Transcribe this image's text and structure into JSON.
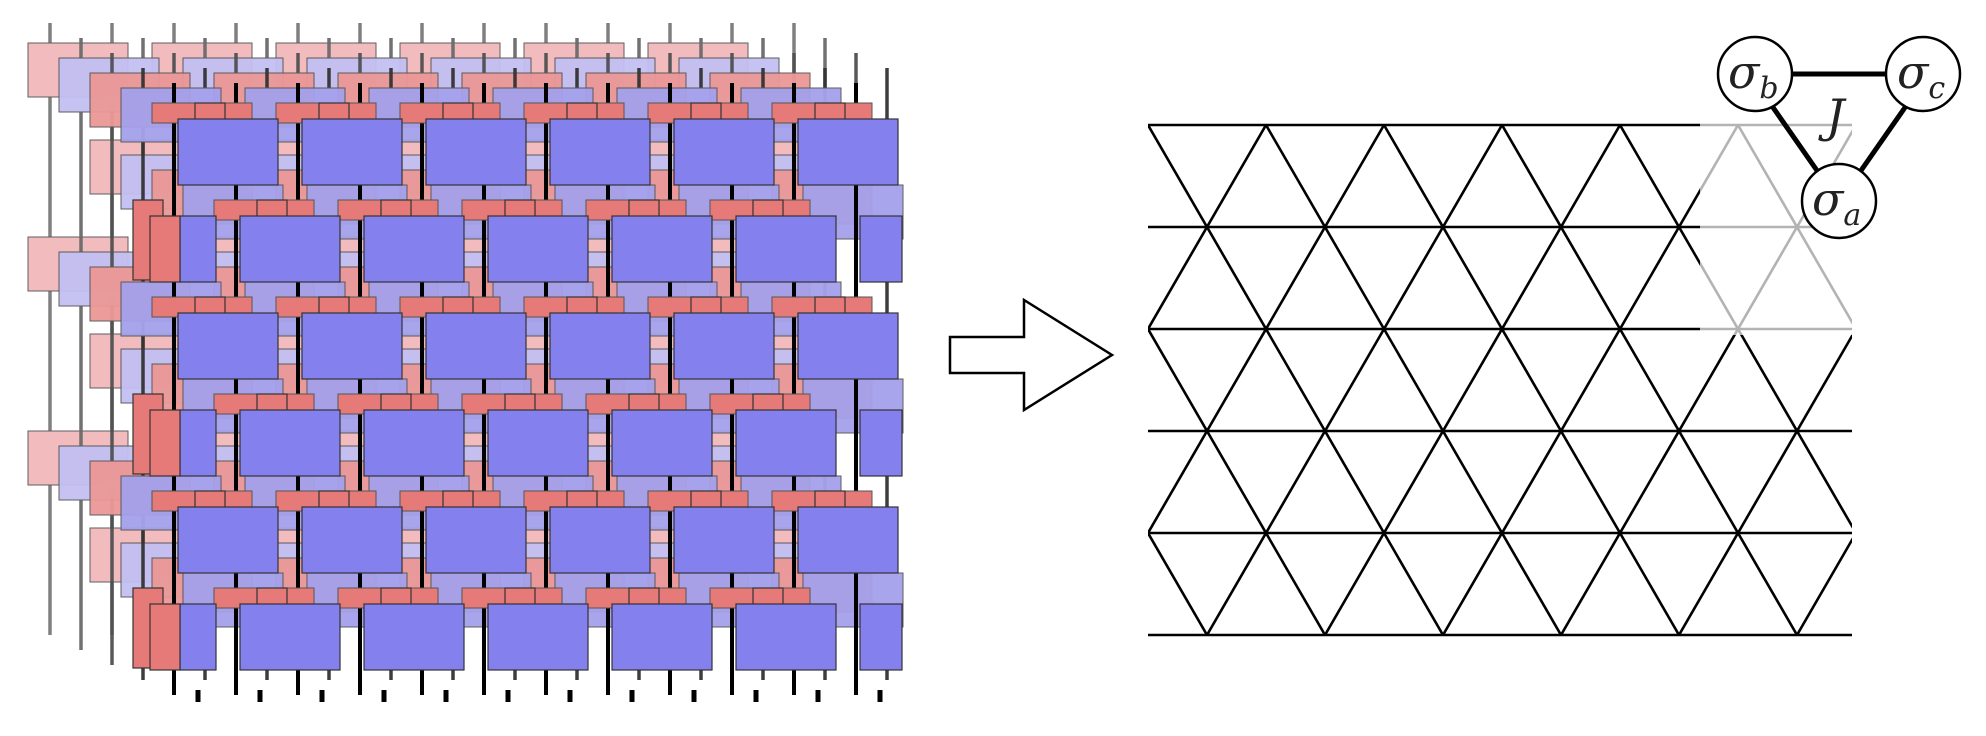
{
  "diagram": {
    "left_network": {
      "layers": 5,
      "tensor_rows": 6,
      "tensor_columns": 6
    },
    "arrow": {
      "direction": "right",
      "shape": "block-arrow"
    },
    "lattice": {
      "type": "triangular",
      "rows": 5
    },
    "inset": {
      "nodes": [
        {
          "id": "b",
          "base": "σ",
          "sub": "b"
        },
        {
          "id": "c",
          "base": "σ",
          "sub": "c"
        },
        {
          "id": "a",
          "base": "σ",
          "sub": "a"
        }
      ],
      "coupling_label": "J"
    },
    "colors": {
      "gate_red": "#e57a78",
      "gate_blue": "#8480ee",
      "line": "#000000",
      "faded_line": "#c8c8c8"
    }
  }
}
